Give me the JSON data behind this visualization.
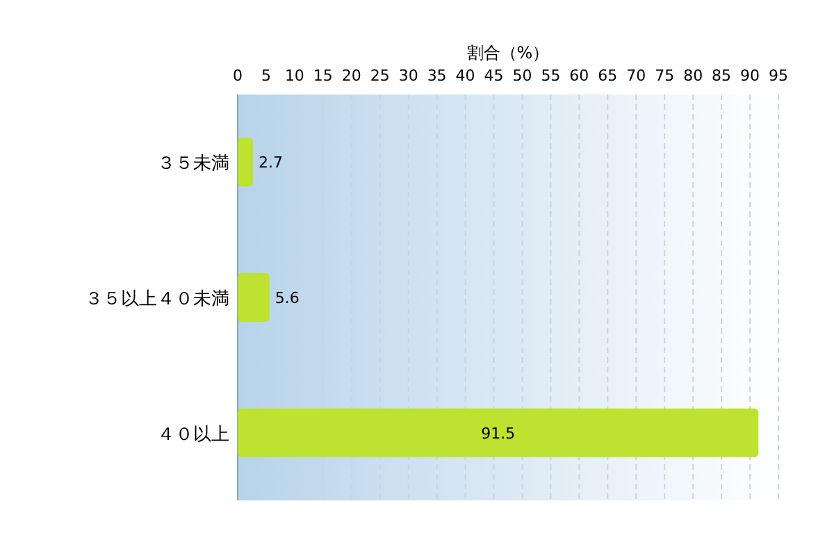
{
  "chart_data": {
    "type": "bar",
    "orientation": "horizontal",
    "xlabel": "割合（%）",
    "categories": [
      "３５未満",
      "３５以上４０未満",
      "４０以上"
    ],
    "values": [
      2.7,
      5.6,
      91.5
    ],
    "color": "#bde22f",
    "xlim": [
      0,
      95
    ],
    "xticks": [
      0,
      5,
      10,
      15,
      20,
      25,
      30,
      35,
      40,
      45,
      50,
      55,
      60,
      65,
      70,
      75,
      80,
      85,
      90,
      95
    ],
    "grid": "x",
    "data_labels": true
  }
}
